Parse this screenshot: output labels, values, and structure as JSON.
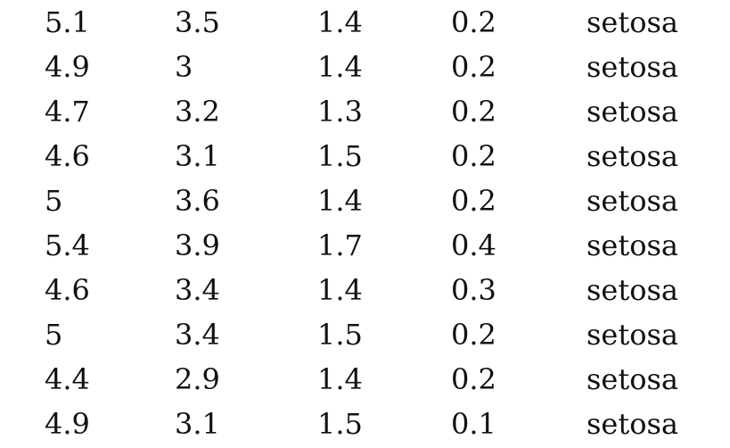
{
  "table": {
    "rows": [
      [
        "5.1",
        "3.5",
        "1.4",
        "0.2",
        "setosa"
      ],
      [
        "4.9",
        "3",
        "1.4",
        "0.2",
        "setosa"
      ],
      [
        "4.7",
        "3.2",
        "1.3",
        "0.2",
        "setosa"
      ],
      [
        "4.6",
        "3.1",
        "1.5",
        "0.2",
        "setosa"
      ],
      [
        "5",
        "3.6",
        "1.4",
        "0.2",
        "setosa"
      ],
      [
        "5.4",
        "3.9",
        "1.7",
        "0.4",
        "setosa"
      ],
      [
        "4.6",
        "3.4",
        "1.4",
        "0.3",
        "setosa"
      ],
      [
        "5",
        "3.4",
        "1.5",
        "0.2",
        "setosa"
      ],
      [
        "4.4",
        "2.9",
        "1.4",
        "0.2",
        "setosa"
      ],
      [
        "4.9",
        "3.1",
        "1.5",
        "0.1",
        "setosa"
      ]
    ]
  }
}
